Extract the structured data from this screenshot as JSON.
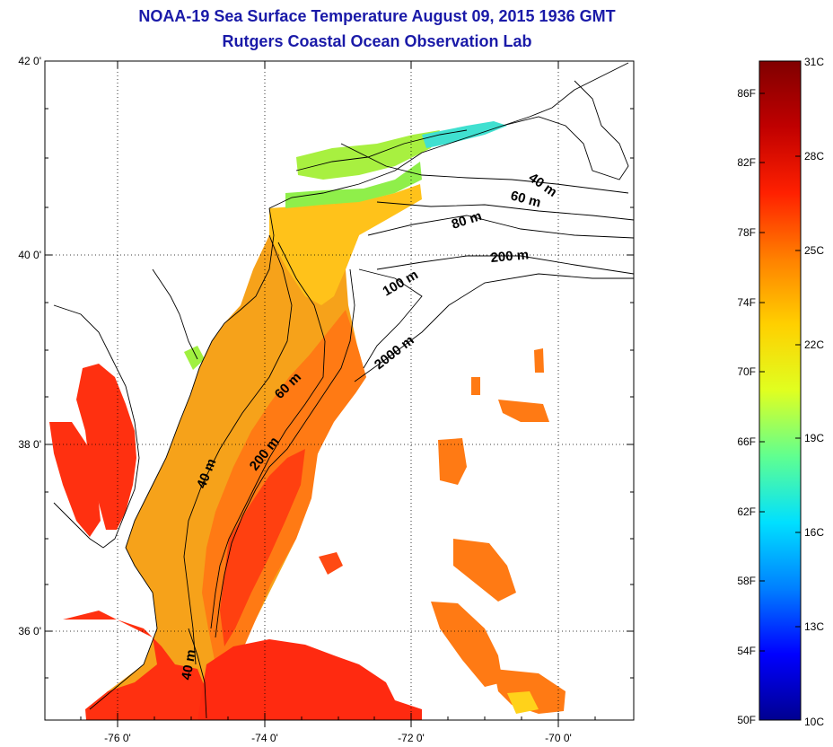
{
  "title_line1": "NOAA-19 Sea Surface Temperature August 09, 2015 1936 GMT",
  "title_line2": "Rutgers Coastal Ocean Observation Lab",
  "lat_labels": [
    "42 0'",
    "40 0'",
    "38 0'",
    "36 0'"
  ],
  "lon_labels": [
    "-76 0'",
    "-74 0'",
    "-72 0'",
    "-70 0'"
  ],
  "contour_labels": [
    "40 m",
    "60 m",
    "80 m",
    "200 m",
    "100 m",
    "2000 m",
    "60 m",
    "200 m",
    "40 m",
    "40 m"
  ],
  "colorbar": {
    "f_labels": [
      "86F",
      "82F",
      "78F",
      "74F",
      "70F",
      "66F",
      "62F",
      "58F",
      "54F",
      "50F"
    ],
    "c_labels": [
      "31C",
      "28C",
      "25C",
      "22C",
      "19C",
      "16C",
      "13C",
      "10C"
    ],
    "colors": [
      "#000090",
      "#0000ff",
      "#0080ff",
      "#00e0ff",
      "#60ff90",
      "#e0ff20",
      "#ffd000",
      "#ff8000",
      "#ff2000",
      "#c00000",
      "#800000"
    ]
  },
  "palette": {
    "land": "#ffffff",
    "water_warm": "#ff8a1a",
    "water_hot": "#ff2a10",
    "water_shelf": "#f6a21a",
    "water_cool": "#ffd21a",
    "water_green": "#8fef4a",
    "water_cyan": "#40e0e0"
  }
}
